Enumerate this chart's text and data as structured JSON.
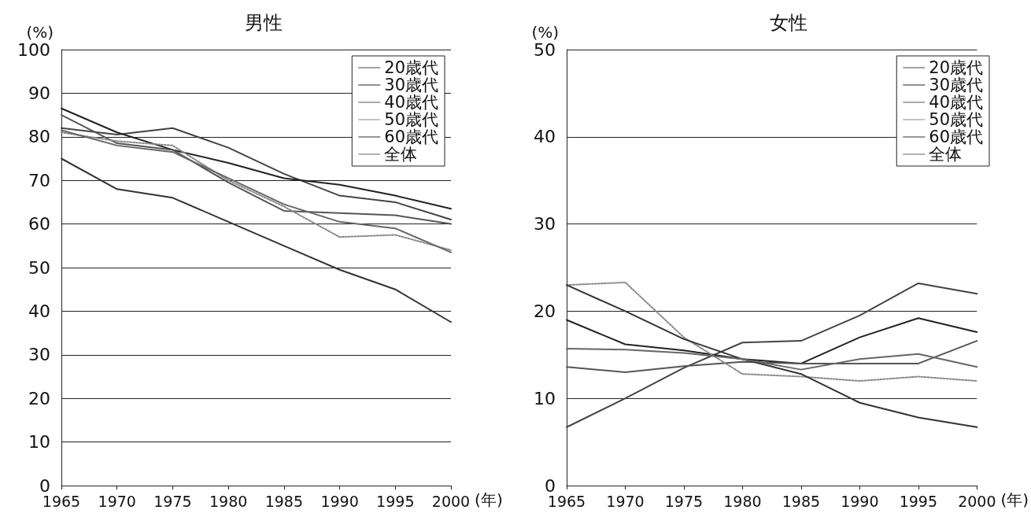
{
  "chart_data": [
    {
      "type": "line",
      "title": "男性",
      "ylabel": "(%)",
      "xlabel": "(年)",
      "categories": [
        "1965",
        "1970",
        "1975",
        "1980",
        "1985",
        "1990",
        "1995",
        "2000"
      ],
      "ylim": [
        0,
        100
      ],
      "yticks": [
        0,
        10,
        20,
        30,
        40,
        50,
        60,
        70,
        80,
        90,
        100
      ],
      "grid": "y",
      "legend": "top right",
      "marker": "none",
      "line_style": "solid",
      "series": [
        {
          "name": "20歳代",
          "color": "#444444",
          "values": [
            82,
            80.5,
            82,
            77.5,
            71.5,
            66.5,
            65,
            61
          ]
        },
        {
          "name": "30歳代",
          "color": "#222222",
          "values": [
            86.5,
            81,
            77,
            74,
            70.5,
            69,
            66.5,
            63.5
          ]
        },
        {
          "name": "40歳代",
          "color": "#555555",
          "values": [
            85,
            78.5,
            77,
            69.5,
            63,
            62.5,
            62,
            60
          ]
        },
        {
          "name": "50歳代",
          "color": "#888888",
          "values": [
            81,
            79,
            78,
            70,
            64,
            57,
            57.5,
            54
          ],
          "line_style": "dotted"
        },
        {
          "name": "60歳代",
          "color": "#333333",
          "values": [
            75,
            68,
            66,
            60.5,
            55,
            49.5,
            45,
            37.5
          ]
        },
        {
          "name": "全体",
          "color": "#666666",
          "values": [
            81.5,
            78,
            76.5,
            70.5,
            64.5,
            60.5,
            59,
            53.5
          ]
        }
      ]
    },
    {
      "type": "line",
      "title": "女性",
      "ylabel": "(%)",
      "xlabel": "(年)",
      "categories": [
        "1965",
        "1970",
        "1975",
        "1980",
        "1985",
        "1990",
        "1995",
        "2000"
      ],
      "ylim": [
        0,
        50
      ],
      "yticks": [
        0,
        10,
        20,
        30,
        40,
        50
      ],
      "grid": "y",
      "legend": "top right",
      "marker": "none",
      "line_style": "solid",
      "series": [
        {
          "name": "20歳代",
          "color": "#444444",
          "values": [
            6.7,
            10,
            13.5,
            16.4,
            16.6,
            19.5,
            23.2,
            22
          ]
        },
        {
          "name": "30歳代",
          "color": "#222222",
          "values": [
            19,
            16.2,
            15.5,
            14.5,
            14,
            17,
            19.2,
            17.6
          ]
        },
        {
          "name": "40歳代",
          "color": "#555555",
          "values": [
            13.6,
            13,
            13.7,
            14.2,
            14,
            14,
            14,
            16.6
          ]
        },
        {
          "name": "50歳代",
          "color": "#888888",
          "values": [
            23,
            23.3,
            17,
            12.8,
            12.5,
            12,
            12.5,
            12
          ],
          "line_style": "dotted"
        },
        {
          "name": "60歳代",
          "color": "#333333",
          "values": [
            23,
            20,
            16.8,
            14.5,
            12.8,
            9.5,
            7.8,
            6.7
          ]
        },
        {
          "name": "全体",
          "color": "#666666",
          "values": [
            15.7,
            15.6,
            15.2,
            14.5,
            13.3,
            14.5,
            15.1,
            13.6
          ]
        }
      ]
    }
  ]
}
